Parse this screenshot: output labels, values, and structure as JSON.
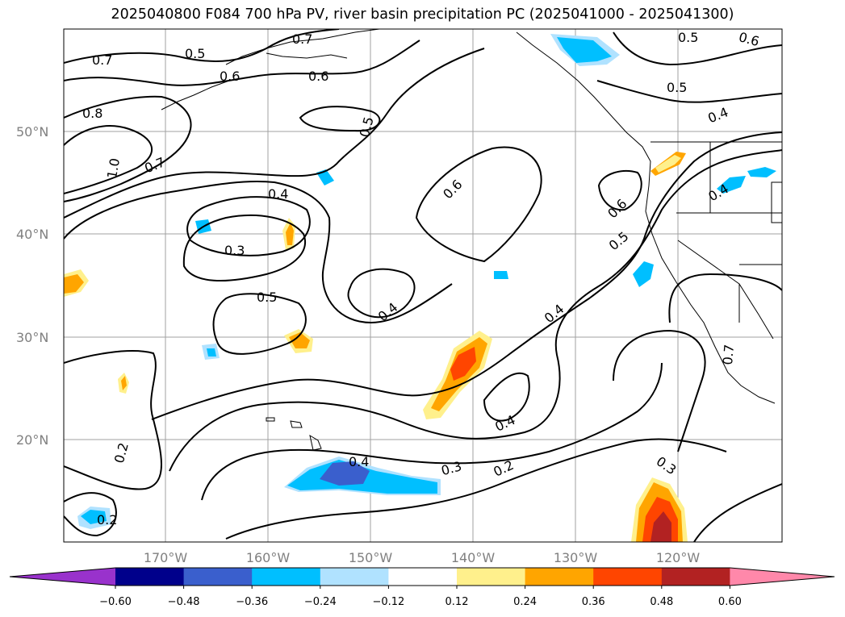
{
  "title": "2025040800 F084 700 hPa PV, river basin precipitation PC (2025041000 - 2025041300)",
  "lat_labels": [
    "50°N",
    "40°N",
    "30°N",
    "20°N"
  ],
  "lon_labels": [
    "170°W",
    "160°W",
    "150°W",
    "140°W",
    "130°W",
    "120°W"
  ],
  "contour_labels": [
    "0.7",
    "0.5",
    "0.6",
    "0.7",
    "0.6",
    "0.5",
    "0.8",
    "1.0",
    "0.7",
    "0.5",
    "0.4",
    "0.3",
    "0.6",
    "0.6",
    "0.5",
    "0.4",
    "0.5",
    "0.4",
    "0.4",
    "0.4",
    "0.4",
    "0.3",
    "0.2",
    "0.3",
    "0.2",
    "0.2",
    "0.4",
    "0.7",
    "0.5",
    "0.6"
  ],
  "colorbar": {
    "ticks": [
      "−0.60",
      "−0.48",
      "−0.36",
      "−0.24",
      "−0.12",
      "0.12",
      "0.24",
      "0.36",
      "0.48",
      "0.60"
    ],
    "colors": [
      "#9932cc",
      "#00008b",
      "#3a5fcd",
      "#00bfff",
      "#b0e2ff",
      "#ffffff",
      "#fff08c",
      "#ffa500",
      "#ff4500",
      "#b22222",
      "#ff88aa"
    ]
  },
  "colors": {
    "contour": "#000000",
    "grid": "#a0a0a0",
    "axis_label": "#808080"
  }
}
